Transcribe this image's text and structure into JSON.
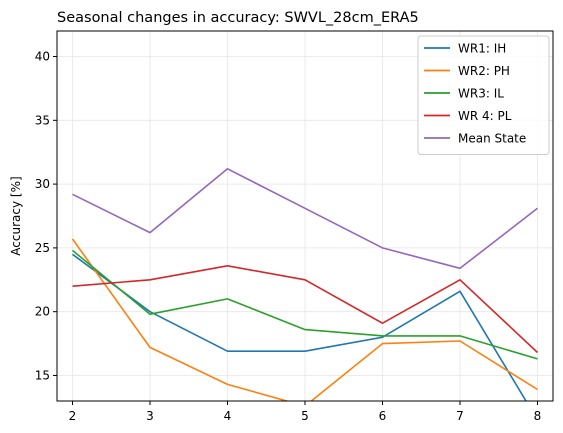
{
  "chart_data": {
    "type": "line",
    "title": "Seasonal changes in accuracy: SWVL_28cm_ERA5",
    "xlabel": "",
    "ylabel": "Accuracy [%]",
    "x": [
      2,
      3,
      4,
      5,
      6,
      7,
      8
    ],
    "xlim": [
      1.8,
      8.2
    ],
    "ylim": [
      13.0,
      42.0
    ],
    "xticks": [
      "2",
      "3",
      "4",
      "5",
      "6",
      "7",
      "8"
    ],
    "yticks": [
      "15",
      "20",
      "25",
      "30",
      "35",
      "40"
    ],
    "grid": true,
    "legend_position": "top-right",
    "series": [
      {
        "name": "WR1: IH",
        "color": "#1f77b4",
        "values": [
          24.5,
          20.0,
          16.9,
          16.9,
          18.0,
          21.6,
          11.5
        ]
      },
      {
        "name": "WR2: PH",
        "color": "#ff7f0e",
        "values": [
          25.7,
          17.2,
          14.3,
          12.6,
          17.5,
          17.7,
          13.9
        ]
      },
      {
        "name": "WR3: IL",
        "color": "#2ca02c",
        "values": [
          24.8,
          19.8,
          21.0,
          18.6,
          18.1,
          18.1,
          16.3
        ]
      },
      {
        "name": "WR 4: PL",
        "color": "#d62728",
        "values": [
          22.0,
          22.5,
          23.6,
          22.5,
          19.1,
          22.5,
          16.8
        ]
      },
      {
        "name": "Mean State",
        "color": "#9467bd",
        "values": [
          29.2,
          26.2,
          31.2,
          28.1,
          25.0,
          23.4,
          28.1
        ]
      }
    ]
  }
}
